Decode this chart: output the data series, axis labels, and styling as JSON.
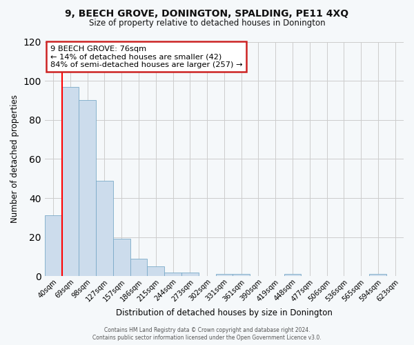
{
  "title": "9, BEECH GROVE, DONINGTON, SPALDING, PE11 4XQ",
  "subtitle": "Size of property relative to detached houses in Donington",
  "xlabel": "Distribution of detached houses by size in Donington",
  "ylabel": "Number of detached properties",
  "bin_labels": [
    "40sqm",
    "69sqm",
    "98sqm",
    "127sqm",
    "157sqm",
    "186sqm",
    "215sqm",
    "244sqm",
    "273sqm",
    "302sqm",
    "331sqm",
    "361sqm",
    "390sqm",
    "419sqm",
    "448sqm",
    "477sqm",
    "506sqm",
    "536sqm",
    "565sqm",
    "594sqm",
    "623sqm"
  ],
  "bar_heights": [
    31,
    97,
    90,
    49,
    19,
    9,
    5,
    2,
    2,
    0,
    1,
    1,
    0,
    0,
    1,
    0,
    0,
    0,
    0,
    1,
    0
  ],
  "bar_color": "#ccdcec",
  "bar_edge_color": "#7aaac8",
  "bar_width": 1.0,
  "red_line_x": 1.0,
  "ylim": [
    0,
    120
  ],
  "yticks": [
    0,
    20,
    40,
    60,
    80,
    100,
    120
  ],
  "annotation_title": "9 BEECH GROVE: 76sqm",
  "annotation_line1": "← 14% of detached houses are smaller (42)",
  "annotation_line2": "84% of semi-detached houses are larger (257) →",
  "annotation_box_facecolor": "#ffffff",
  "annotation_box_edgecolor": "#cc2222",
  "footer1": "Contains HM Land Registry data © Crown copyright and database right 2024.",
  "footer2": "Contains public sector information licensed under the Open Government Licence v3.0.",
  "fig_facecolor": "#f5f8fa",
  "plot_facecolor": "#f5f8fa",
  "grid_color": "#cccccc"
}
